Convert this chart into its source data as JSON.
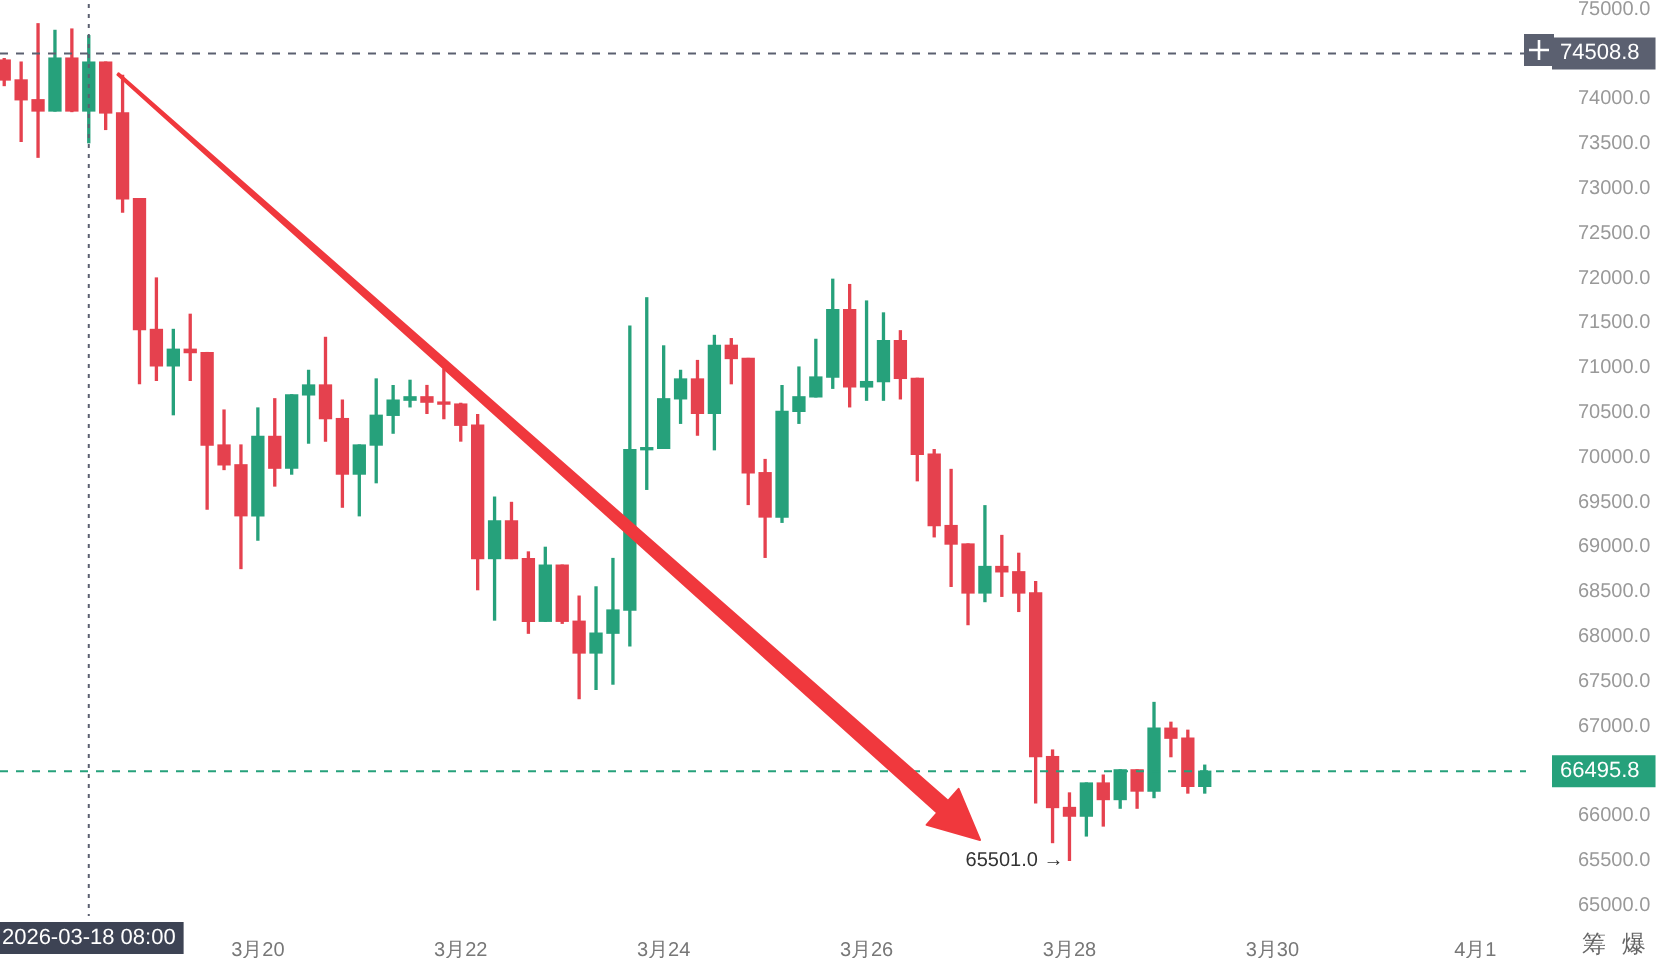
{
  "chart_data": {
    "type": "candlestick",
    "x": [
      "2026-03-17T12:00",
      "2026-03-17T16:00",
      "2026-03-17T20:00",
      "2026-03-18T00:00",
      "2026-03-18T04:00",
      "2026-03-18T08:00",
      "2026-03-18T12:00",
      "2026-03-18T16:00",
      "2026-03-18T20:00",
      "2026-03-19T00:00",
      "2026-03-19T04:00",
      "2026-03-19T08:00",
      "2026-03-19T12:00",
      "2026-03-19T16:00",
      "2026-03-19T20:00",
      "2026-03-20T00:00",
      "2026-03-20T04:00",
      "2026-03-20T08:00",
      "2026-03-20T12:00",
      "2026-03-20T16:00",
      "2026-03-20T20:00",
      "2026-03-21T00:00",
      "2026-03-21T04:00",
      "2026-03-21T08:00",
      "2026-03-21T12:00",
      "2026-03-21T16:00",
      "2026-03-21T20:00",
      "2026-03-22T00:00",
      "2026-03-22T04:00",
      "2026-03-22T08:00",
      "2026-03-22T12:00",
      "2026-03-22T16:00",
      "2026-03-22T20:00",
      "2026-03-23T00:00",
      "2026-03-23T04:00",
      "2026-03-23T08:00",
      "2026-03-23T12:00",
      "2026-03-23T16:00",
      "2026-03-23T20:00",
      "2026-03-24T00:00",
      "2026-03-24T04:00",
      "2026-03-24T08:00",
      "2026-03-24T12:00",
      "2026-03-24T16:00",
      "2026-03-24T20:00",
      "2026-03-25T00:00",
      "2026-03-25T04:00",
      "2026-03-25T08:00",
      "2026-03-25T12:00",
      "2026-03-25T16:00",
      "2026-03-25T20:00",
      "2026-03-26T00:00",
      "2026-03-26T04:00",
      "2026-03-26T08:00",
      "2026-03-26T12:00",
      "2026-03-26T16:00",
      "2026-03-26T20:00",
      "2026-03-27T00:00",
      "2026-03-27T04:00",
      "2026-03-27T08:00",
      "2026-03-27T12:00",
      "2026-03-27T16:00",
      "2026-03-27T20:00",
      "2026-03-28T00:00",
      "2026-03-28T04:00",
      "2026-03-28T08:00",
      "2026-03-28T12:00",
      "2026-03-28T16:00",
      "2026-03-28T20:00",
      "2026-03-29T00:00",
      "2026-03-29T04:00",
      "2026-03-29T08:00"
    ],
    "ohlc": [
      [
        74434,
        74450,
        74150,
        74212
      ],
      [
        74212,
        74411,
        73527,
        73991
      ],
      [
        73991,
        74839,
        73350,
        73866
      ],
      [
        73866,
        74765,
        73866,
        74456
      ],
      [
        74456,
        74780,
        73860,
        73866
      ],
      [
        73866,
        74706,
        73512,
        74411
      ],
      [
        74411,
        74411,
        73660,
        73844
      ],
      [
        73844,
        74264,
        72738,
        72886
      ],
      [
        72886,
        72886,
        70822,
        71427
      ],
      [
        71427,
        72001,
        70859,
        71021
      ],
      [
        71021,
        71427,
        70476,
        71206
      ],
      [
        71206,
        71596,
        70859,
        71169
      ],
      [
        71169,
        71169,
        69422,
        70137
      ],
      [
        70137,
        70527,
        69864,
        69916
      ],
      [
        69916,
        70137,
        68759,
        69348
      ],
      [
        69348,
        70550,
        69076,
        70233
      ],
      [
        70233,
        70653,
        69680,
        69879
      ],
      [
        69879,
        70697,
        69813,
        70697
      ],
      [
        70697,
        70970,
        70159,
        70807
      ],
      [
        70807,
        71338,
        70181,
        70432
      ],
      [
        70432,
        70638,
        69444,
        69813
      ],
      [
        69813,
        70137,
        69348,
        70137
      ],
      [
        70137,
        70874,
        69717,
        70469
      ],
      [
        70469,
        70800,
        70270,
        70638
      ],
      [
        70638,
        70859,
        70564,
        70675
      ],
      [
        70675,
        70801,
        70491,
        70616
      ],
      [
        70616,
        70985,
        70432,
        70594
      ],
      [
        70594,
        70602,
        70182,
        70358
      ],
      [
        70358,
        70476,
        68523,
        68870
      ],
      [
        68870,
        69555,
        68184,
        69290
      ],
      [
        69290,
        69496,
        68870,
        68870
      ],
      [
        68870,
        68943,
        68037,
        68170
      ],
      [
        68170,
        68995,
        68170,
        68796
      ],
      [
        68796,
        68796,
        68148,
        68170
      ],
      [
        68170,
        68450,
        67307,
        67816
      ],
      [
        67816,
        68553,
        67410,
        68037
      ],
      [
        68037,
        68870,
        67469,
        68295
      ],
      [
        68295,
        71464,
        67897,
        70085
      ],
      [
        70085,
        71780,
        69643,
        70100
      ],
      [
        70100,
        71243,
        70100,
        70653
      ],
      [
        70653,
        70970,
        70380,
        70874
      ],
      [
        70874,
        71080,
        70248,
        70491
      ],
      [
        70491,
        71360,
        70085,
        71250
      ],
      [
        71250,
        71324,
        70822,
        71103
      ],
      [
        71103,
        71103,
        69474,
        69828
      ],
      [
        69828,
        69975,
        68884,
        69334
      ],
      [
        69334,
        70800,
        69275,
        70513
      ],
      [
        70513,
        71007,
        70380,
        70675
      ],
      [
        70675,
        71316,
        70675,
        70896
      ],
      [
        70896,
        71987,
        70771,
        71648
      ],
      [
        71648,
        71928,
        70564,
        70786
      ],
      [
        70786,
        71744,
        70638,
        70845
      ],
      [
        70845,
        71611,
        70638,
        71302
      ],
      [
        71302,
        71412,
        70653,
        70881
      ],
      [
        70881,
        70881,
        69739,
        70034
      ],
      [
        70034,
        70085,
        69113,
        69238
      ],
      [
        69238,
        69864,
        68560,
        69032
      ],
      [
        69032,
        69032,
        68133,
        68486
      ],
      [
        68486,
        69459,
        68390,
        68781
      ],
      [
        68781,
        69127,
        68449,
        68722
      ],
      [
        68722,
        68928,
        68280,
        68486
      ],
      [
        68486,
        68612,
        66143,
        66659
      ],
      [
        66659,
        66732,
        65700,
        66091
      ],
      [
        66091,
        66253,
        65501,
        65995
      ],
      [
        65995,
        66364,
        65774,
        66364
      ],
      [
        66364,
        66452,
        65885,
        66180
      ],
      [
        66180,
        66511,
        66084,
        66511
      ],
      [
        66511,
        66511,
        66084,
        66275
      ],
      [
        66275,
        67263,
        66202,
        66976
      ],
      [
        66976,
        67042,
        66659,
        66865
      ],
      [
        66865,
        66953,
        66253,
        66327
      ],
      [
        66327,
        66563,
        66253,
        66495.8
      ]
    ],
    "xlim": [
      "2026-03-17T11:00",
      "2026-04-01T12:00"
    ],
    "xticks": [
      {
        "value": "2026-03-20",
        "label": "3月20"
      },
      {
        "value": "2026-03-22",
        "label": "3月22"
      },
      {
        "value": "2026-03-24",
        "label": "3月24"
      },
      {
        "value": "2026-03-26",
        "label": "3月26"
      },
      {
        "value": "2026-03-28",
        "label": "3月28"
      },
      {
        "value": "2026-03-30",
        "label": "3月30"
      },
      {
        "value": "2026-04-01",
        "label": "4月1"
      }
    ],
    "ylim": [
      64880,
      75060
    ],
    "yticks": [
      {
        "value": 65000,
        "label": "65000.0"
      },
      {
        "value": 65500,
        "label": "65500.0"
      },
      {
        "value": 66000,
        "label": "66000.0"
      },
      {
        "value": 66500,
        "label": null
      },
      {
        "value": 67000,
        "label": "67000.0"
      },
      {
        "value": 67500,
        "label": "67500.0"
      },
      {
        "value": 68000,
        "label": "68000.0"
      },
      {
        "value": 68500,
        "label": "68500.0"
      },
      {
        "value": 69000,
        "label": "69000.0"
      },
      {
        "value": 69500,
        "label": "69500.0"
      },
      {
        "value": 70000,
        "label": "70000.0"
      },
      {
        "value": 70500,
        "label": "70500.0"
      },
      {
        "value": 71000,
        "label": "71000.0"
      },
      {
        "value": 71500,
        "label": "71500.0"
      },
      {
        "value": 72000,
        "label": "72000.0"
      },
      {
        "value": 72500,
        "label": "72500.0"
      },
      {
        "value": 73000,
        "label": "73000.0"
      },
      {
        "value": 73500,
        "label": "73500.0"
      },
      {
        "value": 74000,
        "label": "74000.0"
      },
      {
        "value": 74500,
        "label": null
      },
      {
        "value": 75000,
        "label": "75000.0"
      }
    ],
    "ref_lines": [
      {
        "axis": "y",
        "value": 74508.8,
        "label": "74508.8",
        "color": "#5b6070",
        "line_style": "dashed"
      },
      {
        "axis": "y",
        "value": 66495.8,
        "label": "66495.8",
        "color": "#26a17b",
        "line_style": "dashed"
      },
      {
        "axis": "x",
        "value": "2026-03-18T08:00",
        "label": "2026-03-18 08:00",
        "color": "#5b6070",
        "line_style": "dotted"
      }
    ],
    "annotations": [
      {
        "text": "65501.0 →",
        "x": "2026-03-28T00:00",
        "y": 65501
      },
      "筹",
      "爆"
    ]
  }
}
